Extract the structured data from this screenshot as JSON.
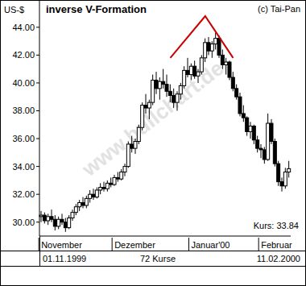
{
  "chart_data": {
    "type": "candlestick",
    "title": "inverse V-Formation",
    "copyright": "(c) Tai-Pan",
    "y_label": "US-$",
    "watermark": "www.bullchart.de",
    "last_price_label": "Kurs: 33.84",
    "footer": [
      "01.11.1999",
      "72 Kurse",
      "11.02.2000"
    ],
    "color": "#000000",
    "grid": false,
    "categories": [
      "November",
      null,
      null,
      null,
      null,
      null,
      null,
      null,
      null,
      null,
      null,
      null,
      null,
      null,
      null,
      null,
      null,
      null,
      null,
      null,
      null,
      "Dezember",
      null,
      null,
      null,
      null,
      null,
      null,
      null,
      null,
      null,
      null,
      null,
      null,
      null,
      null,
      null,
      null,
      null,
      null,
      null,
      null,
      null,
      "Januar'00",
      null,
      null,
      null,
      null,
      null,
      null,
      null,
      null,
      null,
      null,
      null,
      null,
      null,
      null,
      null,
      null,
      null,
      null,
      null,
      "Februar",
      null,
      null,
      null,
      null,
      null,
      null,
      null,
      null
    ],
    "open": [
      30.4,
      30.5,
      30.1,
      30.4,
      30.2,
      29.7,
      30.2,
      30.0,
      29.6,
      30.3,
      30.7,
      31.1,
      31.4,
      31.2,
      31.7,
      32.0,
      31.8,
      32.3,
      32.5,
      32.4,
      32.8,
      32.7,
      33.2,
      33.1,
      33.6,
      34.0,
      35.6,
      35.3,
      35.8,
      36.8,
      38.4,
      38.2,
      38.6,
      40.2,
      39.6,
      40.1,
      39.9,
      39.4,
      39.1,
      38.6,
      39.2,
      39.8,
      40.9,
      40.6,
      41.2,
      40.5,
      40.8,
      41.8,
      42.9,
      42.3,
      42.8,
      43.2,
      42.0,
      41.3,
      41.5,
      40.4,
      39.6,
      39.0,
      37.8,
      37.5,
      36.5,
      36.9,
      35.9,
      35.3,
      35.2,
      34.5,
      37.1,
      35.8,
      34.2,
      32.9,
      32.6,
      33.6
    ],
    "high": [
      30.8,
      30.7,
      30.6,
      30.9,
      30.5,
      30.4,
      30.6,
      30.3,
      30.5,
      30.9,
      31.3,
      31.6,
      31.8,
      31.9,
      32.3,
      32.4,
      32.5,
      32.8,
      32.9,
      33.0,
      33.2,
      33.4,
      33.6,
      33.8,
      34.2,
      35.8,
      36.2,
      36.0,
      37.0,
      38.6,
      39.2,
      38.8,
      40.6,
      40.8,
      40.4,
      41.0,
      40.6,
      39.9,
      39.6,
      39.4,
      40.0,
      41.2,
      41.8,
      41.4,
      41.6,
      41.0,
      42.0,
      43.2,
      43.3,
      43.0,
      43.6,
      43.4,
      42.4,
      41.8,
      41.6,
      40.8,
      39.9,
      39.3,
      38.4,
      37.6,
      37.2,
      37.0,
      36.2,
      35.6,
      35.4,
      37.8,
      37.4,
      36.0,
      34.4,
      33.2,
      33.9,
      34.4
    ],
    "low": [
      30.0,
      29.9,
      29.8,
      30.0,
      29.4,
      29.5,
      29.8,
      29.3,
      29.5,
      30.1,
      30.5,
      30.8,
      31.0,
      31.0,
      31.4,
      31.6,
      31.7,
      32.0,
      32.2,
      32.2,
      32.5,
      32.6,
      32.9,
      33.0,
      33.3,
      33.9,
      35.0,
      34.9,
      35.6,
      36.6,
      37.8,
      37.4,
      38.4,
      39.2,
      38.8,
      39.6,
      39.0,
      38.6,
      38.2,
      38.0,
      38.8,
      39.6,
      40.4,
      40.2,
      40.3,
      40.0,
      40.6,
      41.5,
      42.0,
      41.8,
      42.4,
      41.8,
      41.0,
      40.6,
      40.2,
      39.4,
      38.8,
      37.6,
      37.2,
      36.2,
      36.0,
      35.6,
      35.0,
      34.6,
      34.2,
      34.4,
      35.6,
      34.0,
      32.6,
      32.2,
      32.4,
      33.2
    ],
    "close": [
      30.5,
      30.1,
      30.4,
      30.2,
      29.7,
      30.2,
      30.0,
      29.6,
      30.3,
      30.7,
      31.1,
      31.4,
      31.2,
      31.7,
      32.0,
      31.8,
      32.3,
      32.5,
      32.4,
      32.8,
      32.7,
      33.2,
      33.1,
      33.6,
      34.0,
      35.6,
      35.3,
      35.8,
      36.8,
      38.4,
      38.2,
      38.6,
      40.2,
      39.6,
      40.1,
      39.9,
      39.4,
      39.1,
      38.6,
      39.2,
      39.8,
      40.9,
      40.6,
      41.2,
      40.5,
      40.8,
      41.8,
      42.9,
      42.3,
      42.8,
      43.2,
      42.0,
      41.3,
      41.5,
      40.4,
      39.6,
      39.0,
      37.8,
      37.5,
      36.5,
      36.9,
      35.9,
      35.3,
      35.2,
      34.5,
      37.1,
      35.8,
      34.2,
      32.9,
      32.6,
      33.6,
      33.84
    ],
    "pattern": {
      "x": [
        37,
        47,
        55
      ],
      "values": [
        41.8,
        44.8,
        41.8
      ],
      "color": "#cc0000"
    },
    "ylim": [
      29,
      45.9
    ],
    "yticks": [
      {
        "value": 30,
        "label": "30.00"
      },
      {
        "value": 32,
        "label": "32.00"
      },
      {
        "value": 34,
        "label": "34.00"
      },
      {
        "value": 36,
        "label": "36.00"
      },
      {
        "value": 38,
        "label": "38.00"
      },
      {
        "value": 40,
        "label": "40.00"
      },
      {
        "value": 42,
        "label": "42.00"
      },
      {
        "value": 44,
        "label": "44.00"
      }
    ]
  }
}
